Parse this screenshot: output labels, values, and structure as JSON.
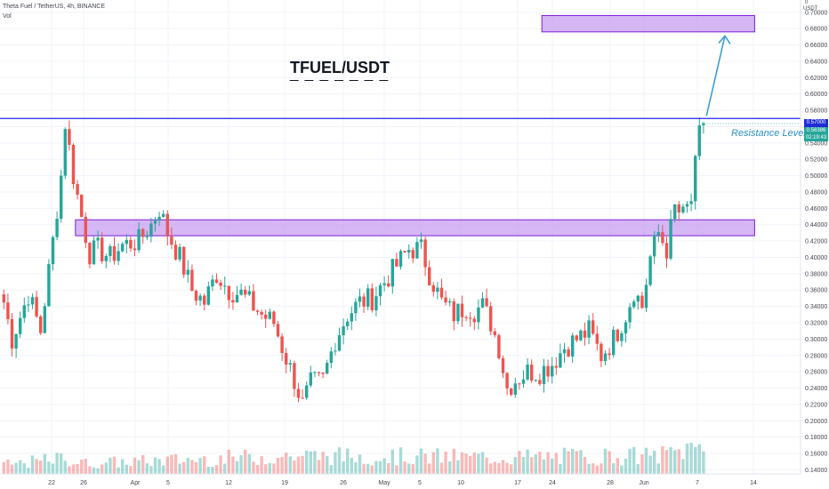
{
  "header": {
    "symbol_line": "Theta Fuel / TetherUS, 4h, BINANCE",
    "volume_label": "Vol"
  },
  "annotations": {
    "main_title": "TFUEL/USDT",
    "title_underline": "— — — — — — —",
    "resistance_label": "Resistance Level"
  },
  "price_axis": {
    "currency_label": "USDT",
    "top_label": "0",
    "resistance_value": "0.57000",
    "current_price": "0.56386",
    "countdown": "02:19:43"
  },
  "colors": {
    "up": "#26a69a",
    "down": "#ef5350",
    "resistance_line": "#2323e8",
    "zone_fill": "#c89ef2",
    "zone_border": "#7b1fd6",
    "arrow": "#3b9fd6",
    "label_bg": "#1e2bd6",
    "current_bg": "#26a69a"
  },
  "chart_data": {
    "type": "candlestick",
    "title": "TFUEL/USDT",
    "symbol": "Theta Fuel / TetherUS",
    "interval": "4h",
    "exchange": "BINANCE",
    "x_tick_labels": [
      "22",
      "26",
      "Apr",
      "5",
      "12",
      "19",
      "26",
      "May",
      "5",
      "10",
      "17",
      "24",
      "28",
      "Jun",
      "7",
      "14"
    ],
    "y_tick_labels": [
      "0.70000",
      "0.68000",
      "0.66000",
      "0.64000",
      "0.62000",
      "0.60000",
      "0.58000",
      "0.56000",
      "0.54000",
      "0.52000",
      "0.50000",
      "0.48000",
      "0.46000",
      "0.44000",
      "0.42000",
      "0.40000",
      "0.38000",
      "0.36000",
      "0.34000",
      "0.32000",
      "0.30000",
      "0.28000",
      "0.26000",
      "0.24000",
      "0.22000",
      "0.20000",
      "0.18000",
      "0.16000",
      "0.14000"
    ],
    "ylim": [
      0.135,
      0.715
    ],
    "close_path": [
      [
        0,
        0.345
      ],
      [
        2,
        0.3
      ],
      [
        6,
        0.355
      ],
      [
        9,
        0.31
      ],
      [
        12,
        0.42
      ],
      [
        14,
        0.5
      ],
      [
        15,
        0.565
      ],
      [
        17,
        0.5
      ],
      [
        19,
        0.45
      ],
      [
        21,
        0.405
      ],
      [
        23,
        0.41
      ],
      [
        26,
        0.4
      ],
      [
        29,
        0.415
      ],
      [
        33,
        0.42
      ],
      [
        36,
        0.44
      ],
      [
        38,
        0.46
      ],
      [
        40,
        0.43
      ],
      [
        43,
        0.4
      ],
      [
        46,
        0.36
      ],
      [
        49,
        0.345
      ],
      [
        52,
        0.38
      ],
      [
        55,
        0.36
      ],
      [
        58,
        0.355
      ],
      [
        61,
        0.34
      ],
      [
        63,
        0.33
      ],
      [
        66,
        0.32
      ],
      [
        68,
        0.29
      ],
      [
        71,
        0.25
      ],
      [
        73,
        0.22
      ],
      [
        75,
        0.245
      ],
      [
        78,
        0.25
      ],
      [
        81,
        0.3
      ],
      [
        84,
        0.33
      ],
      [
        87,
        0.345
      ],
      [
        90,
        0.35
      ],
      [
        93,
        0.37
      ],
      [
        96,
        0.39
      ],
      [
        99,
        0.41
      ],
      [
        102,
        0.41
      ],
      [
        104,
        0.38
      ],
      [
        107,
        0.345
      ],
      [
        110,
        0.33
      ],
      [
        113,
        0.34
      ],
      [
        115,
        0.335
      ],
      [
        117,
        0.34
      ],
      [
        119,
        0.32
      ],
      [
        121,
        0.29
      ],
      [
        123,
        0.24
      ],
      [
        125,
        0.25
      ],
      [
        128,
        0.26
      ],
      [
        131,
        0.26
      ],
      [
        134,
        0.27
      ],
      [
        137,
        0.29
      ],
      [
        140,
        0.3
      ],
      [
        143,
        0.31
      ],
      [
        146,
        0.28
      ],
      [
        149,
        0.3
      ],
      [
        152,
        0.33
      ],
      [
        154,
        0.36
      ],
      [
        156,
        0.34
      ],
      [
        158,
        0.4
      ],
      [
        160,
        0.43
      ],
      [
        162,
        0.41
      ],
      [
        164,
        0.46
      ],
      [
        166,
        0.45
      ],
      [
        168,
        0.47
      ],
      [
        170,
        0.55
      ],
      [
        171,
        0.56386
      ]
    ],
    "volume_profile": [
      [
        0,
        0.3
      ],
      [
        14,
        0.5
      ],
      [
        20,
        0.35
      ],
      [
        70,
        0.6
      ],
      [
        120,
        0.55
      ],
      [
        160,
        0.6
      ],
      [
        171,
        0.95
      ]
    ],
    "resistance_level": 0.57,
    "current_price": 0.56386,
    "zones": [
      {
        "from": 0.4265,
        "to": 0.446,
        "start_index": 18,
        "end_index": 184
      },
      {
        "from": 0.676,
        "to": 0.696,
        "start_index": 132,
        "end_index": 184
      }
    ],
    "projection": {
      "from_index": 172,
      "from_price": 0.573,
      "to_index": 175,
      "to_price": 0.671
    },
    "annotations": [
      "TFUEL/USDT",
      "Resistance Level"
    ]
  }
}
